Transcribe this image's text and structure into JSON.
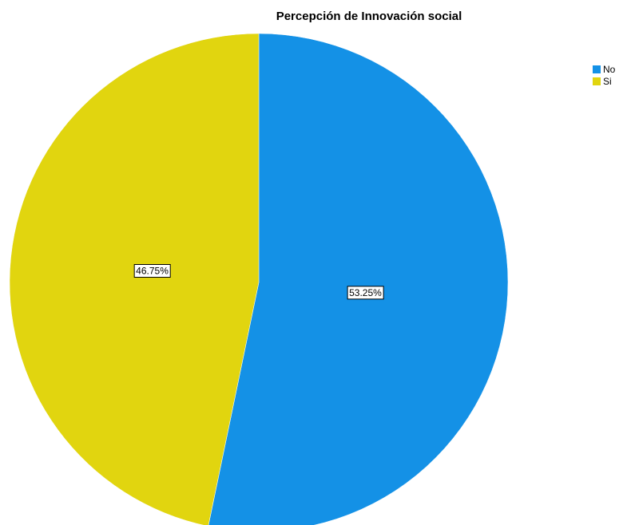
{
  "chart_data": {
    "type": "pie",
    "title": "Percepción de Innovación social",
    "categories": [
      "No",
      "Si"
    ],
    "values": [
      53.25,
      46.75
    ],
    "value_labels": [
      "53.25%",
      "46.75%"
    ],
    "colors": [
      "#1491e6",
      "#e1d50f"
    ],
    "legend": "top-right"
  }
}
